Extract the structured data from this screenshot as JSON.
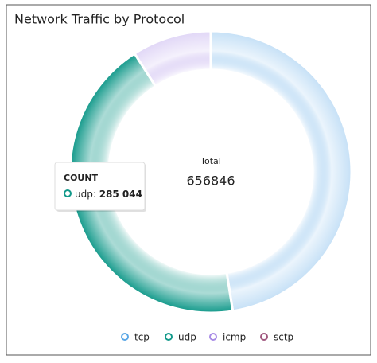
{
  "chart_data": {
    "type": "donut",
    "title": "Network Traffic by Protocol",
    "categories": [
      "tcp",
      "udp",
      "icmp",
      "sctp"
    ],
    "values": [
      312000,
      285044,
      59802,
      0
    ],
    "value_labels": [
      null,
      "285 044",
      null,
      null
    ],
    "colors": [
      "#5aa7e6",
      "#12998a",
      "#a88be6",
      "#a0587f"
    ],
    "center_label": "Total",
    "center_value": 656846,
    "tooltip": {
      "title": "COUNT",
      "index": 1
    }
  }
}
